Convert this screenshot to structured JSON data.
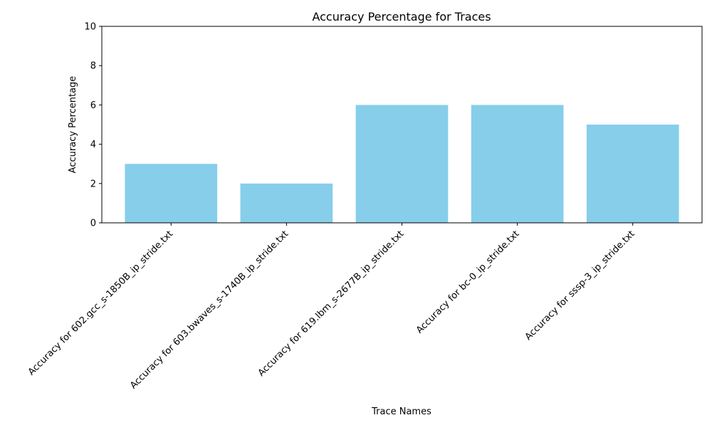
{
  "chart_data": {
    "type": "bar",
    "title": "Accuracy Percentage for Traces",
    "xlabel": "Trace Names",
    "ylabel": "Accuracy Percentage",
    "categories": [
      "Accuracy for 602.gcc_s-1850B_ip_stride.txt",
      "Accuracy for 603.bwaves_s-1740B_ip_stride.txt",
      "Accuracy for 619.lbm_s-2677B_ip_stride.txt",
      "Accuracy for bc-0_ip_stride.txt",
      "Accuracy for sssp-3_ip_stride.txt"
    ],
    "values": [
      3,
      2,
      6,
      6,
      5
    ],
    "ylim": [
      0,
      10
    ],
    "yticks": [
      0,
      2,
      4,
      6,
      8,
      10
    ],
    "grid": false,
    "bar_color": "#87ceeb"
  }
}
